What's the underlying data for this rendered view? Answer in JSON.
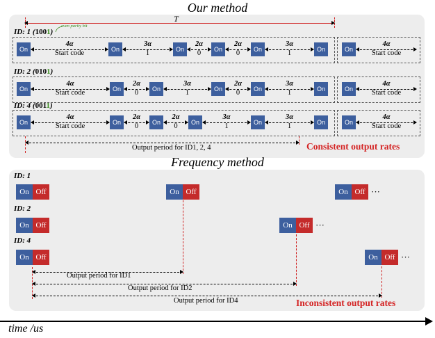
{
  "our_method": {
    "title": "Our method",
    "period_symbol": "T",
    "parity_note": "even parity bit",
    "rows": [
      {
        "label_prefix": "ID: 1 (",
        "code_main": "100",
        "code_parity": "1",
        "label_suffix": ")",
        "gaps": [
          [
            "4α",
            "Start code"
          ],
          [
            "3α",
            "1"
          ],
          [
            "2α",
            "0"
          ],
          [
            "2α",
            "0"
          ],
          [
            "3α",
            "1"
          ]
        ]
      },
      {
        "label_prefix": "ID: 2 (",
        "code_main": "010",
        "code_parity": "1",
        "label_suffix": ")",
        "gaps": [
          [
            "4α",
            "Start code"
          ],
          [
            "2α",
            "0"
          ],
          [
            "3α",
            "1"
          ],
          [
            "2α",
            "0"
          ],
          [
            "3α",
            "1"
          ]
        ]
      },
      {
        "label_prefix": "ID: 4 (",
        "code_main": "001",
        "code_parity": "1",
        "label_suffix": ")",
        "gaps": [
          [
            "4α",
            "Start code"
          ],
          [
            "2α",
            "0"
          ],
          [
            "2α",
            "0"
          ],
          [
            "3α",
            "1"
          ],
          [
            "3α",
            "1"
          ]
        ]
      }
    ],
    "next_gap": [
      "4α",
      "Start code"
    ],
    "on_label": "On",
    "output_period_text": "Output period for ID1, 2, 4",
    "conclusion": "Consistent output rates"
  },
  "frequency_method": {
    "title": "Frequency method",
    "id_labels": [
      "ID: 1",
      "ID: 2",
      "ID: 4"
    ],
    "on_label": "On",
    "off_label": "Off",
    "ellipsis": "···",
    "period_texts": [
      "Output period for ID1",
      "Output period for ID2",
      "Output period for ID4"
    ],
    "conclusion": "Inconsistent  output rates"
  },
  "axis_label": "time /us",
  "colors": {
    "on": "#3d5f9e",
    "off": "#c42b2b",
    "accent_red": "#d42424",
    "parity_green": "#3a8c1f",
    "panel": "#ededed"
  }
}
